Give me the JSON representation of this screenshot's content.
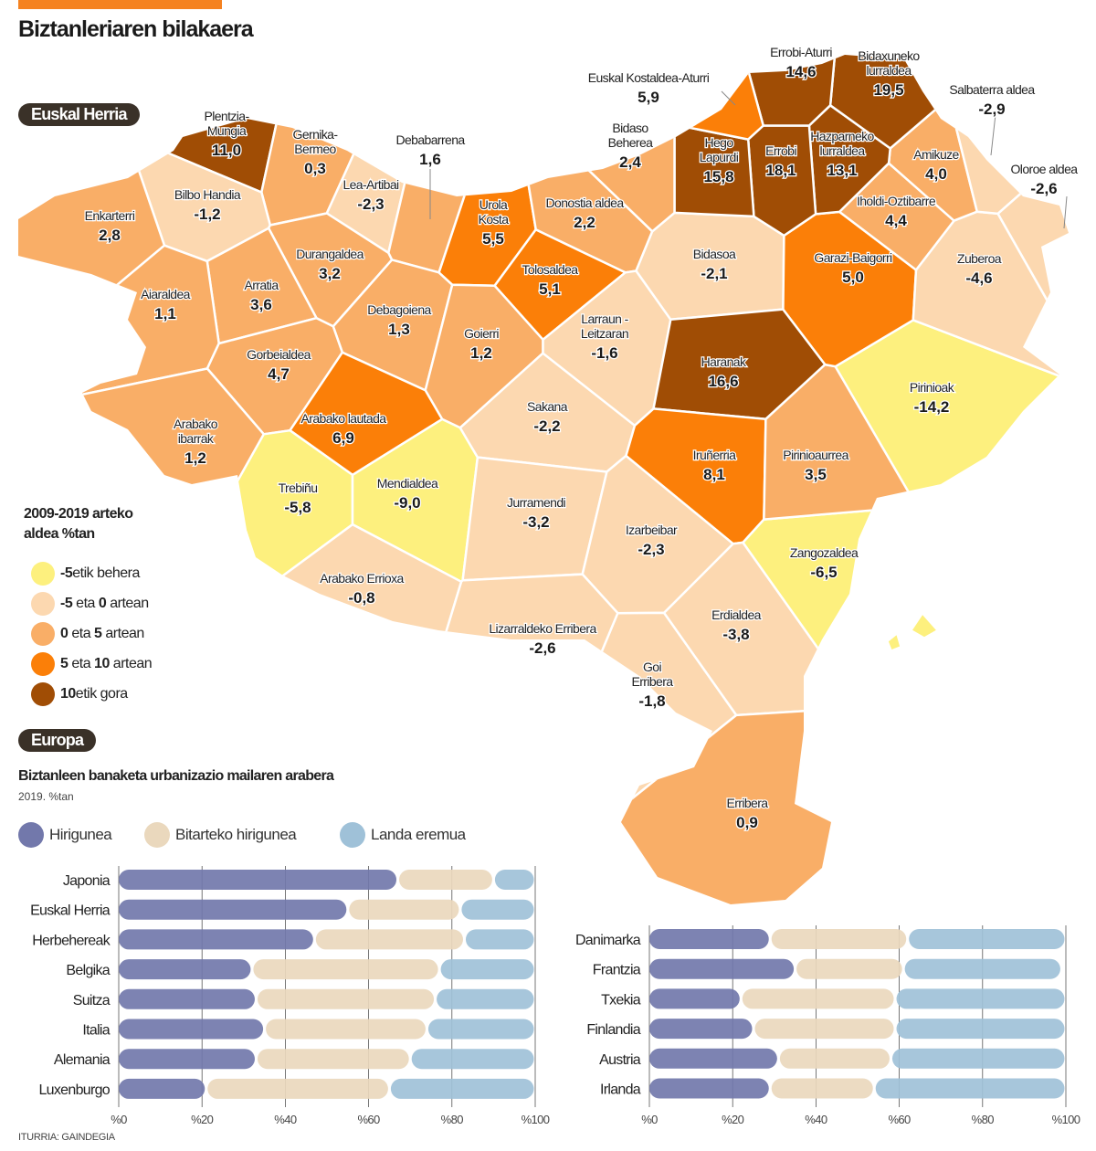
{
  "header": {
    "title": "Biztanleriaren bilakaera"
  },
  "map": {
    "section_label": "Euskal Herria",
    "category_colors": {
      "below_-5": "#fdf07e",
      "-5_to_0": "#fcd8b0",
      "0_to_5": "#f9ae67",
      "5_to_10": "#fb7f08",
      "above_10": "#a04d05"
    },
    "regions": [
      {
        "name": "Plentzia-\nMungia",
        "value": "11,0"
      },
      {
        "name": "Gernika-\nBermeo",
        "value": "0,3"
      },
      {
        "name": "Bilbo Handia",
        "value": "-1,2"
      },
      {
        "name": "Lea-Artibai",
        "value": "-2,3"
      },
      {
        "name": "Debabarrena",
        "value": "1,6"
      },
      {
        "name": "Enkarterri",
        "value": "2,8"
      },
      {
        "name": "Durangaldea",
        "value": "3,2"
      },
      {
        "name": "Arratia",
        "value": "3,6"
      },
      {
        "name": "Aiaraldea",
        "value": "1,1"
      },
      {
        "name": "Debagoiena",
        "value": "1,3"
      },
      {
        "name": "Urola\nKosta",
        "value": "5,5"
      },
      {
        "name": "Tolosaldea",
        "value": "5,1"
      },
      {
        "name": "Donostia aldea",
        "value": "2,2"
      },
      {
        "name": "Goierri",
        "value": "1,2"
      },
      {
        "name": "Gorbeialdea",
        "value": "4,7"
      },
      {
        "name": "Arabako lautada",
        "value": "6,9"
      },
      {
        "name": "Arabako\nibarrak",
        "value": "1,2"
      },
      {
        "name": "Trebiñu",
        "value": "-5,8"
      },
      {
        "name": "Mendialdea",
        "value": "-9,0"
      },
      {
        "name": "Arabako Errioxa",
        "value": "-0,8"
      },
      {
        "name": "Sakana",
        "value": "-2,2"
      },
      {
        "name": "Larraun -\nLeitzaran",
        "value": "-1,6"
      },
      {
        "name": "Bidasoa",
        "value": "-2,1"
      },
      {
        "name": "Haranak",
        "value": "16,6"
      },
      {
        "name": "Iruñerria",
        "value": "8,1"
      },
      {
        "name": "Jurramendi",
        "value": "-3,2"
      },
      {
        "name": "Izarbeibar",
        "value": "-2,3"
      },
      {
        "name": "Lizarraldeko Erribera",
        "value": "-2,6"
      },
      {
        "name": "Goi\nErribera",
        "value": "-1,8"
      },
      {
        "name": "Erdialdea",
        "value": "-3,8"
      },
      {
        "name": "Erribera",
        "value": "0,9"
      },
      {
        "name": "Zangozaldea",
        "value": "-6,5"
      },
      {
        "name": "Pirinioaurrea",
        "value": "3,5"
      },
      {
        "name": "Pirinioak",
        "value": "-14,2"
      },
      {
        "name": "Garazi-Baigorri",
        "value": "5,0"
      },
      {
        "name": "Zuberoa",
        "value": "-4,6"
      },
      {
        "name": "Iholdi-Oztibarre",
        "value": "4,4"
      },
      {
        "name": "Amikuze",
        "value": "4,0"
      },
      {
        "name": "Hazparneko\nlurraldea",
        "value": "13,1"
      },
      {
        "name": "Errobi",
        "value": "18,1"
      },
      {
        "name": "Hego\nLapurdi",
        "value": "15,8"
      },
      {
        "name": "Bidaxuneko\nlurraldea",
        "value": "19,5"
      },
      {
        "name": "Errobi-Aturri",
        "value": "14,6"
      },
      {
        "name": "Euskal Kostaldea-Aturri",
        "value": "5,9"
      },
      {
        "name": "Bidaso\nBeherea",
        "value": "2,4"
      },
      {
        "name": "Salbaterra aldea",
        "value": "-2,9"
      },
      {
        "name": "Oloroe aldea",
        "value": "-2,6"
      }
    ],
    "legend": {
      "title_line1": "2009-2019 arteko",
      "title_line2": "aldea %tan",
      "items": [
        {
          "a": "-5",
          "b": "etik behera",
          "c": "",
          "d": "",
          "color": "#fdf07e"
        },
        {
          "a": "-5",
          "b": " eta ",
          "c": "0",
          "d": " artean",
          "color": "#fcd8b0"
        },
        {
          "a": "0",
          "b": " eta ",
          "c": "5",
          "d": " artean",
          "color": "#f9ae67"
        },
        {
          "a": "5",
          "b": " eta ",
          "c": "10",
          "d": " artean",
          "color": "#fb7f08"
        },
        {
          "a": "10",
          "b": "etik gora",
          "c": "",
          "d": "",
          "color": "#a04d05"
        }
      ]
    }
  },
  "europe": {
    "section_label": "Europa",
    "subtitle": "Biztanleen banaketa urbanizazio mailaren arabera",
    "unit": "2019. %tan",
    "source": "ITURRIA: GAINDEGIA"
  },
  "chart_data": {
    "type": "bar",
    "orientation": "horizontal",
    "stacked": true,
    "title": "Biztanleen banaketa urbanizazio mailaren arabera",
    "subtitle": "2019. %tan",
    "xlim": [
      0,
      100
    ],
    "x_ticks": [
      "%0",
      "%20",
      "%40",
      "%60",
      "%80",
      "%100"
    ],
    "grid": true,
    "legend_placement": "top-left",
    "series_meta": [
      {
        "name": "Hirigunea",
        "color": "#7278ab"
      },
      {
        "name": "Bitarteko hirigunea",
        "color": "#ead8bd"
      },
      {
        "name": "Landa eremua",
        "color": "#9fc1d8"
      }
    ],
    "panels": [
      {
        "categories": [
          "Japonia",
          "Euskal Herria",
          "Herbehereak",
          "Belgika",
          "Suitza",
          "Italia",
          "Alemania",
          "Luxenburgo"
        ],
        "series": [
          {
            "name": "Hirigunea",
            "values": [
              67,
              55,
              47,
              32,
              33,
              35,
              33,
              21
            ]
          },
          {
            "name": "Bitarteko hirigunea",
            "values": [
              23,
              27,
              36,
              45,
              43,
              39,
              37,
              44
            ]
          },
          {
            "name": "Landa eremua",
            "values": [
              10,
              18,
              17,
              23,
              24,
              26,
              30,
              35
            ]
          }
        ]
      },
      {
        "categories": [
          "Danimarka",
          "Frantzia",
          "Txekia",
          "Finlandia",
          "Austria",
          "Irlanda"
        ],
        "series": [
          {
            "name": "Hirigunea",
            "values": [
              29,
              35,
              22,
              25,
              31,
              29
            ]
          },
          {
            "name": "Bitarteko hirigunea",
            "values": [
              33,
              26,
              37,
              34,
              27,
              25
            ]
          },
          {
            "name": "Landa eremua",
            "values": [
              38,
              38,
              41,
              41,
              42,
              46
            ]
          }
        ]
      }
    ]
  }
}
